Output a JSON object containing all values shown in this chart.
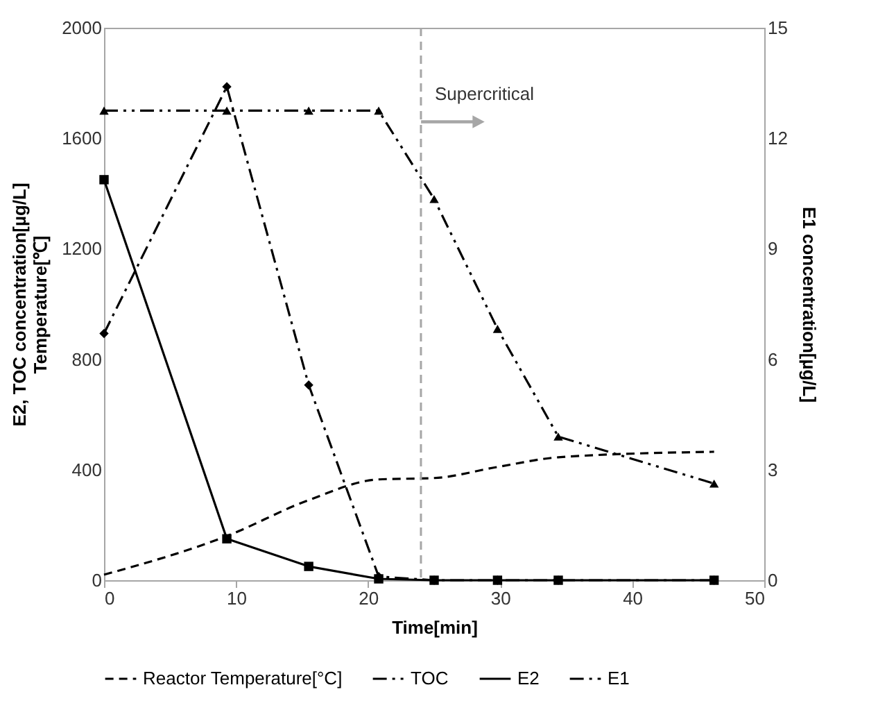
{
  "chart_data": {
    "type": "line",
    "xlabel": "Time[min]",
    "ylabel": "E2, TOC concentration[µg/L]\nTemperature[℃]",
    "y2label": "E1 concentration[µg/L]",
    "xlim": [
      0,
      50
    ],
    "xticks": [
      0,
      10,
      20,
      30,
      40,
      50
    ],
    "ylim": [
      0,
      2000
    ],
    "yticks": [
      0,
      400,
      800,
      1200,
      1600,
      2000
    ],
    "y2lim": [
      0,
      15
    ],
    "y2ticks": [
      0,
      3,
      6,
      9,
      12,
      15
    ],
    "grid": false,
    "legend": "bottom",
    "series": [
      {
        "name": "Reactor Temperature[°C]",
        "color": "#000000",
        "line_style": "dashed",
        "marker": "none",
        "x": [
          0,
          9.3,
          15.5,
          20.8,
          25,
          29.8,
          34.4,
          46.2
        ],
        "values": [
          20,
          160,
          290,
          365,
          370,
          410,
          445,
          465
        ]
      },
      {
        "name": "TOC",
        "color": "#000000",
        "line_style": "dashdotdot",
        "marker": "triangle",
        "x": [
          0,
          9.3,
          15.5,
          20.8,
          25,
          29.8,
          34.4,
          46.2
        ],
        "values": [
          1700,
          1700,
          1700,
          1700,
          1380,
          910,
          520,
          350
        ]
      },
      {
        "name": "E2",
        "color": "#000000",
        "line_style": "solid",
        "marker": "square",
        "x": [
          0,
          9.3,
          15.5,
          20.8,
          25,
          29.8,
          34.4,
          46.2
        ],
        "values": [
          1450,
          150,
          50,
          5,
          0,
          0,
          0,
          0
        ]
      },
      {
        "name": "E1",
        "color": "#000000",
        "line_style": "dashdot",
        "marker": "diamond",
        "axis": "y2",
        "x": [
          0,
          9.3,
          15.5,
          20.8,
          25,
          29.8,
          34.4,
          46.2
        ],
        "values": [
          6.7,
          13.4,
          5.3,
          0.1,
          0,
          0,
          0,
          0
        ]
      }
    ],
    "ref_lines": [
      {
        "axis": "x",
        "value": 24,
        "color": "#a6a6a6",
        "line_style": "dashed"
      }
    ],
    "annotations": [
      {
        "text": "Supercritical",
        "x": 24,
        "y": 1760
      }
    ]
  }
}
